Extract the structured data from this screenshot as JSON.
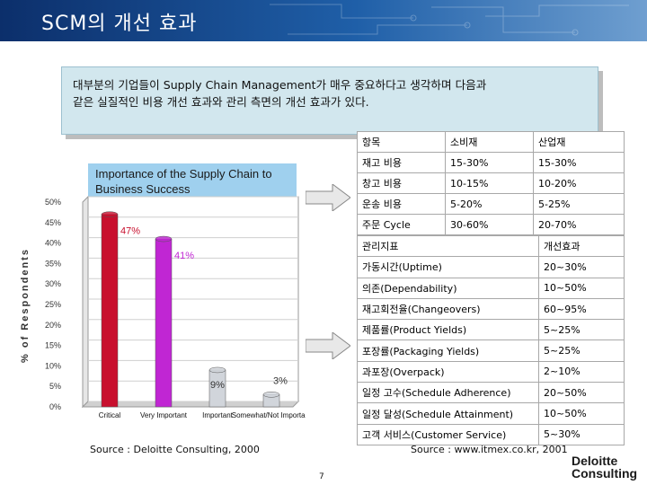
{
  "header": {
    "title": "SCM의 개선 효과"
  },
  "intro": {
    "line1": "대부분의 기업들이 Supply Chain Management가 매우 중요하다고 생각하며 다음과",
    "line2": "같은 실질적인 비용 개선 효과와 관리 측면의 개선 효과가 있다."
  },
  "chart_data": {
    "type": "bar",
    "title": "Importance of the Supply Chain to Business Success",
    "ylabel": "% of Respondents",
    "ylim": [
      0,
      50
    ],
    "yticks": [
      "0%",
      "5%",
      "10%",
      "15%",
      "20%",
      "25%",
      "30%",
      "35%",
      "40%",
      "45%",
      "50%"
    ],
    "categories": [
      "Critical",
      "Very Important",
      "Important",
      "Somewhat/Not Important"
    ],
    "values": [
      47,
      41,
      9,
      3
    ],
    "data_labels": [
      "47%",
      "41%",
      "9%",
      "3%"
    ],
    "colors": [
      "#c8102e",
      "#c026d3",
      "#d1d5db",
      "#d1d5db"
    ],
    "grid": true
  },
  "cost_table": {
    "headers": [
      "항목",
      "소비재",
      "산업재"
    ],
    "rows": [
      [
        "재고 비용",
        "15-30%",
        "15-30%"
      ],
      [
        "창고 비용",
        "10-15%",
        "10-20%"
      ],
      [
        "운송 비용",
        "5-20%",
        "5-25%"
      ],
      [
        "주문 Cycle",
        "30-60%",
        "20-70%"
      ]
    ]
  },
  "mgmt_table": {
    "headers": [
      "관리지표",
      "개선효과"
    ],
    "rows": [
      [
        "가동시간(Uptime)",
        "20~30%"
      ],
      [
        "의존(Dependability)",
        "10~50%"
      ],
      [
        "재고회전율(Changeovers)",
        "60~95%"
      ],
      [
        "제품률(Product Yields)",
        "5~25%"
      ],
      [
        "포장률(Packaging Yields)",
        "5~25%"
      ],
      [
        "과포장(Overpack)",
        "2~10%"
      ],
      [
        "일정 고수(Schedule Adherence)",
        "20~50%"
      ],
      [
        "일정 달성(Schedule Attainment)",
        "10~50%"
      ],
      [
        "고객 서비스(Customer Service)",
        "5~30%"
      ]
    ]
  },
  "sources": {
    "left": "Source : Deloitte Consulting, 2000",
    "right": "Source : www.itmex.co.kr, 2001"
  },
  "page_number": "7",
  "logo": {
    "line1": "Deloitte",
    "line2": "Consulting"
  }
}
